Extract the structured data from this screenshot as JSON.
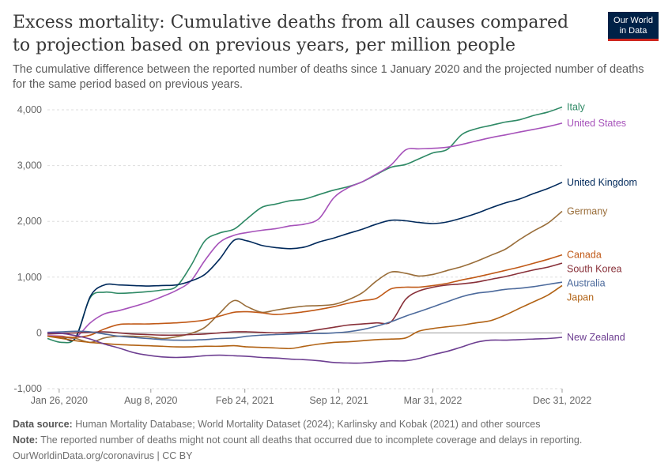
{
  "header": {
    "title": "Excess mortality: Cumulative deaths from all causes compared to projection based on previous years, per million people",
    "subtitle": "The cumulative difference between the reported number of deaths since 1 January 2020 and the projected number of deaths for the same period based on previous years.",
    "logo_line1": "Our World",
    "logo_line2": "in Data"
  },
  "footer": {
    "source_label": "Data source:",
    "source_text": "Human Mortality Database; World Mortality Dataset (2024); Karlinsky and Kobak (2021) and other sources",
    "note_label": "Note:",
    "note_text": "The reported number of deaths might not count all deaths that occurred due to incomplete coverage and delays in reporting.",
    "credit": "OurWorldinData.org/coronavirus | CC BY"
  },
  "chart_data": {
    "type": "line",
    "title": "Excess mortality: Cumulative deaths from all causes compared to projection based on previous years, per million people",
    "xlabel": "",
    "ylabel": "",
    "ylim": [
      -1000,
      4000
    ],
    "yticks": [
      -1000,
      0,
      1000,
      2000,
      3000,
      4000
    ],
    "ytick_labels": [
      "-1,000",
      "0",
      "1,000",
      "2,000",
      "3,000",
      "4,000"
    ],
    "xlim": [
      "2020-01-01",
      "2022-12-31"
    ],
    "xticks": [
      {
        "label": "Jan 26, 2020",
        "date": "2020-01-26"
      },
      {
        "label": "Aug 8, 2020",
        "date": "2020-08-08"
      },
      {
        "label": "Feb 24, 2021",
        "date": "2021-02-24"
      },
      {
        "label": "Sep 12, 2021",
        "date": "2021-09-12"
      },
      {
        "label": "Mar 31, 2022",
        "date": "2022-03-31"
      },
      {
        "label": "Dec 31, 2022",
        "date": "2022-12-31"
      }
    ],
    "grid": true,
    "x_dates": [
      "2020-01-01",
      "2020-02-01",
      "2020-03-01",
      "2020-04-01",
      "2020-05-01",
      "2020-06-01",
      "2020-07-01",
      "2020-08-01",
      "2020-09-01",
      "2020-10-01",
      "2020-11-01",
      "2020-12-01",
      "2021-01-01",
      "2021-02-01",
      "2021-03-01",
      "2021-04-01",
      "2021-05-01",
      "2021-06-01",
      "2021-07-01",
      "2021-08-01",
      "2021-09-01",
      "2021-10-01",
      "2021-11-01",
      "2021-12-01",
      "2022-01-01",
      "2022-02-01",
      "2022-03-01",
      "2022-04-01",
      "2022-05-01",
      "2022-06-01",
      "2022-07-01",
      "2022-08-01",
      "2022-09-01",
      "2022-10-01",
      "2022-11-01",
      "2022-12-01",
      "2022-12-31"
    ],
    "series": [
      {
        "name": "Italy",
        "color": "#2e8965",
        "values": [
          -100,
          -170,
          -80,
          630,
          730,
          710,
          720,
          740,
          770,
          830,
          1200,
          1650,
          1790,
          1860,
          2050,
          2250,
          2310,
          2370,
          2400,
          2480,
          2560,
          2620,
          2710,
          2840,
          2970,
          3020,
          3120,
          3230,
          3290,
          3560,
          3660,
          3720,
          3780,
          3820,
          3900,
          3960,
          4050
        ]
      },
      {
        "name": "United States",
        "color": "#a652ba",
        "values": [
          -50,
          -60,
          -80,
          180,
          340,
          400,
          470,
          550,
          650,
          760,
          930,
          1300,
          1620,
          1750,
          1800,
          1840,
          1870,
          1920,
          1950,
          2050,
          2420,
          2600,
          2710,
          2850,
          3010,
          3280,
          3300,
          3310,
          3330,
          3380,
          3440,
          3500,
          3550,
          3600,
          3650,
          3700,
          3760
        ]
      },
      {
        "name": "United Kingdom",
        "color": "#00295b",
        "values": [
          -60,
          -80,
          -90,
          650,
          860,
          860,
          850,
          840,
          850,
          860,
          930,
          1050,
          1320,
          1660,
          1650,
          1570,
          1530,
          1510,
          1540,
          1630,
          1700,
          1780,
          1860,
          1950,
          2020,
          2010,
          1980,
          1960,
          1990,
          2060,
          2140,
          2240,
          2330,
          2400,
          2500,
          2590,
          2700
        ]
      },
      {
        "name": "Germany",
        "color": "#996d39",
        "values": [
          -60,
          -80,
          -100,
          -170,
          -90,
          -60,
          -60,
          -70,
          -100,
          -70,
          -10,
          100,
          350,
          580,
          470,
          370,
          410,
          450,
          480,
          490,
          510,
          590,
          720,
          930,
          1090,
          1070,
          1020,
          1050,
          1120,
          1190,
          1280,
          1390,
          1500,
          1670,
          1830,
          1970,
          2180
        ]
      },
      {
        "name": "Canada",
        "color": "#c05917",
        "values": [
          -60,
          -70,
          -80,
          -40,
          70,
          150,
          160,
          160,
          170,
          180,
          200,
          230,
          300,
          370,
          380,
          360,
          330,
          350,
          380,
          420,
          470,
          530,
          580,
          620,
          790,
          820,
          820,
          850,
          890,
          950,
          1000,
          1060,
          1120,
          1180,
          1250,
          1320,
          1400
        ]
      },
      {
        "name": "South Korea",
        "color": "#883039",
        "values": [
          -20,
          -10,
          0,
          10,
          20,
          0,
          -20,
          -30,
          -40,
          -40,
          -30,
          -20,
          0,
          20,
          20,
          10,
          0,
          10,
          20,
          60,
          100,
          140,
          160,
          180,
          200,
          600,
          750,
          820,
          860,
          880,
          910,
          960,
          1010,
          1070,
          1130,
          1180,
          1250
        ]
      },
      {
        "name": "Australia",
        "color": "#4c6a9c",
        "values": [
          10,
          20,
          30,
          20,
          -20,
          -60,
          -80,
          -100,
          -120,
          -130,
          -130,
          -120,
          -100,
          -90,
          -60,
          -40,
          -30,
          -20,
          -10,
          -10,
          0,
          20,
          60,
          120,
          200,
          300,
          380,
          470,
          560,
          650,
          710,
          740,
          780,
          800,
          830,
          870,
          910
        ]
      },
      {
        "name": "Japan",
        "color": "#b16214",
        "values": [
          -60,
          -100,
          -140,
          -170,
          -190,
          -210,
          -220,
          -230,
          -240,
          -250,
          -250,
          -240,
          -240,
          -230,
          -250,
          -260,
          -270,
          -280,
          -240,
          -200,
          -170,
          -160,
          -140,
          -120,
          -110,
          -90,
          30,
          80,
          110,
          140,
          180,
          220,
          320,
          440,
          560,
          680,
          850
        ]
      },
      {
        "name": "New Zealand",
        "color": "#6d3e91",
        "values": [
          0,
          -10,
          -50,
          -110,
          -200,
          -270,
          -350,
          -400,
          -430,
          -440,
          -430,
          -410,
          -400,
          -410,
          -420,
          -440,
          -450,
          -470,
          -480,
          -500,
          -530,
          -540,
          -540,
          -520,
          -500,
          -500,
          -460,
          -390,
          -330,
          -250,
          -170,
          -130,
          -130,
          -120,
          -110,
          -100,
          -80
        ]
      }
    ]
  }
}
